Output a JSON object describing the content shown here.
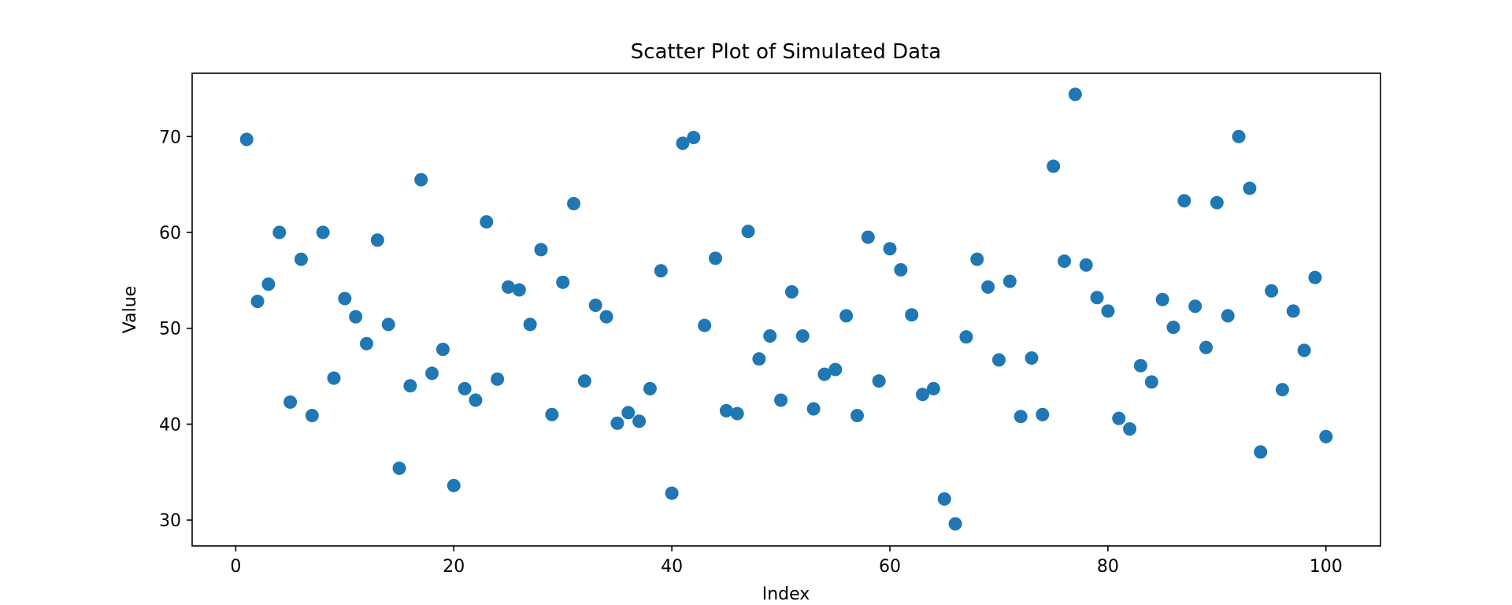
{
  "chart_data": {
    "type": "scatter",
    "title": "Scatter Plot of Simulated Data",
    "xlabel": "Index",
    "ylabel": "Value",
    "xlim": [
      -4,
      105
    ],
    "ylim": [
      27.3,
      76.6
    ],
    "xticks": [
      0,
      20,
      40,
      60,
      80,
      100
    ],
    "yticks": [
      30,
      40,
      50,
      60,
      70
    ],
    "grid": false,
    "marker_color": "#1f77b4",
    "series": [
      {
        "x": [
          1,
          2,
          3,
          4,
          5,
          6,
          7,
          8,
          9,
          10,
          11,
          12,
          13,
          14,
          15,
          16,
          17,
          18,
          19,
          20,
          21,
          22,
          23,
          24,
          25,
          26,
          27,
          28,
          29,
          30,
          31,
          32,
          33,
          34,
          35,
          36,
          37,
          38,
          39,
          40,
          41,
          42,
          43,
          44,
          45,
          46,
          47,
          48,
          49,
          50,
          51,
          52,
          53,
          54,
          55,
          56,
          57,
          58,
          59,
          60,
          61,
          62,
          63,
          64,
          65,
          66,
          67,
          68,
          69,
          70,
          71,
          72,
          73,
          74,
          75,
          76,
          77,
          78,
          79,
          80,
          81,
          82,
          83,
          84,
          85,
          86,
          87,
          88,
          89,
          90,
          91,
          92,
          93,
          94,
          95,
          96,
          97,
          98,
          99,
          100
        ],
        "y": [
          69.7,
          52.8,
          54.6,
          60.0,
          42.3,
          57.2,
          40.9,
          60.0,
          44.8,
          53.1,
          51.2,
          48.4,
          59.2,
          50.4,
          35.4,
          44.0,
          65.5,
          45.3,
          47.8,
          33.6,
          43.7,
          42.5,
          61.1,
          44.7,
          54.3,
          54.0,
          50.4,
          58.2,
          41.0,
          54.8,
          63.0,
          44.5,
          52.4,
          51.2,
          40.1,
          41.2,
          40.3,
          43.7,
          56.0,
          32.8,
          69.3,
          69.9,
          50.3,
          57.3,
          41.4,
          41.1,
          60.1,
          46.8,
          49.2,
          42.5,
          53.8,
          49.2,
          41.6,
          45.2,
          45.7,
          51.3,
          40.9,
          59.5,
          44.5,
          58.3,
          56.1,
          51.4,
          43.1,
          43.7,
          32.2,
          29.6,
          49.1,
          57.2,
          54.3,
          46.7,
          54.9,
          40.8,
          46.9,
          41.0,
          66.9,
          57.0,
          74.4,
          56.6,
          53.2,
          51.8,
          40.6,
          39.5,
          46.1,
          44.4,
          53.0,
          50.1,
          63.3,
          52.3,
          48.0,
          63.1,
          51.3,
          70.0,
          64.6,
          37.1,
          53.9,
          43.6,
          51.8,
          47.7,
          55.3,
          38.7
        ]
      }
    ]
  }
}
